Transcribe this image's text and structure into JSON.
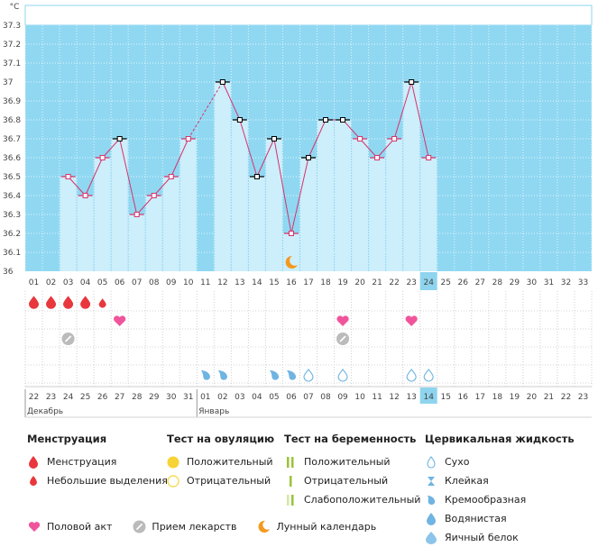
{
  "chart_data": {
    "type": "bar",
    "unit": "°C",
    "ylim": [
      36.0,
      37.3
    ],
    "y_ticks": [
      "37.3",
      "37.2",
      "37.1",
      "37",
      "36.9",
      "36.8",
      "36.7",
      "36.6",
      "36.5",
      "36.4",
      "36.3",
      "36.2",
      "36.1",
      "36"
    ],
    "cycle_days": [
      "01",
      "02",
      "03",
      "04",
      "05",
      "06",
      "07",
      "08",
      "09",
      "10",
      "11",
      "12",
      "13",
      "14",
      "15",
      "16",
      "17",
      "18",
      "19",
      "20",
      "21",
      "22",
      "23",
      "24",
      "25",
      "26",
      "27",
      "28",
      "29",
      "30",
      "31",
      "32",
      "33"
    ],
    "current_day": 24,
    "temperature": [
      null,
      null,
      36.5,
      36.4,
      36.6,
      36.7,
      36.3,
      36.4,
      36.5,
      36.7,
      null,
      37.0,
      36.8,
      36.5,
      36.7,
      36.2,
      36.6,
      36.8,
      36.8,
      36.7,
      36.6,
      36.7,
      37.0,
      36.6,
      null,
      null,
      null,
      null,
      null,
      null,
      null,
      null,
      null
    ],
    "dates": [
      "22",
      "23",
      "24",
      "25",
      "26",
      "27",
      "28",
      "29",
      "30",
      "31",
      "01",
      "02",
      "03",
      "04",
      "05",
      "06",
      "07",
      "08",
      "09",
      "10",
      "11",
      "12",
      "13",
      "14",
      "15",
      "16",
      "17",
      "18",
      "19",
      "20",
      "21",
      "22",
      "23"
    ],
    "dates_red": [
      5,
      6,
      11,
      12,
      18,
      19,
      25,
      26,
      32
    ],
    "current_date_index": 23,
    "months": [
      {
        "label": "Декабрь",
        "start": 0
      },
      {
        "label": "Январь",
        "start": 10
      }
    ],
    "menstruation_days": [
      1,
      2,
      3,
      4
    ],
    "spotting_days": [
      5
    ],
    "intercourse_days": [
      6,
      19,
      23
    ],
    "medication_days": [
      3,
      19
    ],
    "moon_days": [
      16
    ],
    "fluid": [
      {
        "day": 11,
        "type": "creamy"
      },
      {
        "day": 12,
        "type": "creamy"
      },
      {
        "day": 15,
        "type": "creamy"
      },
      {
        "day": 16,
        "type": "creamy"
      },
      {
        "day": 17,
        "type": "dry"
      },
      {
        "day": 19,
        "type": "dry"
      },
      {
        "day": 23,
        "type": "dry"
      },
      {
        "day": 24,
        "type": "dry"
      }
    ]
  },
  "legend": {
    "menstruation": {
      "title": "Менструация",
      "items": [
        "Менструация",
        "Небольшие выделения"
      ]
    },
    "ovulation": {
      "title": "Тест на овуляцию",
      "items": [
        "Положительный",
        "Отрицательный"
      ]
    },
    "pregnancy": {
      "title": "Тест на беременность",
      "items": [
        "Положительный",
        "Отрицательный",
        "Слабоположительный"
      ]
    },
    "fluid": {
      "title": "Цервикальная жидкость",
      "items": [
        "Сухо",
        "Клейкая",
        "Кремообразная",
        "Водянистая",
        "Яичный белок"
      ]
    },
    "bottom": [
      "Половой акт",
      "Прием лекарств",
      "Лунный календарь"
    ]
  },
  "colors": {
    "band": "#90d8f2",
    "bar": "#cdeefb",
    "line": "#d6336c",
    "red": "#e8383d",
    "pink": "#f0559c",
    "fluid": "#6fb4e2",
    "moon": "#f39a1e",
    "yellow": "#f7d336",
    "green": "#9bc23a"
  }
}
